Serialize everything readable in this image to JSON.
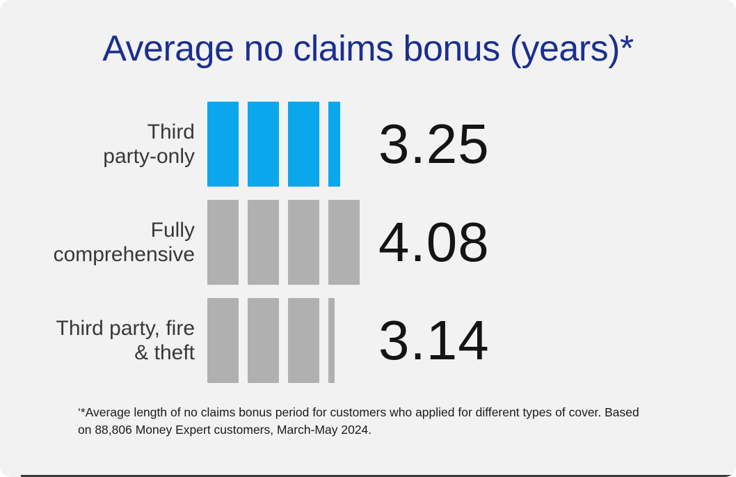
{
  "title": "Average no claims bonus (years)*",
  "footnote": "‘*Average length of no claims bonus period for customers who applied for different types of cover. Based on 88,806 Money Expert customers, March-May 2024.",
  "chart_data": {
    "type": "bar",
    "orientation": "horizontal",
    "bar_style": "segmented",
    "title": "Average no claims bonus (years)*",
    "unit": "years",
    "categories": [
      "Third party-only",
      "Fully comprehensive",
      "Third party, fire & theft"
    ],
    "category_lines": [
      [
        "Third",
        "party-only"
      ],
      [
        "Fully",
        "comprehensive"
      ],
      [
        "Third party, fire",
        "& theft"
      ]
    ],
    "values": [
      3.25,
      4.08,
      3.14
    ],
    "value_labels": [
      "3.25",
      "4.08",
      "3.14"
    ],
    "series": [
      {
        "name": "Average no claims bonus (years)",
        "values": [
          3.25,
          4.08,
          3.14
        ]
      }
    ],
    "segment_unit_years": 1,
    "xlim": [
      0,
      5
    ],
    "grid": false,
    "legend": false,
    "bar_colors": [
      "#0ba7ec",
      "#b0b0b0",
      "#b0b0b0"
    ],
    "highlight_color": "#0ba7ec",
    "default_color": "#b0b0b0"
  },
  "colors": {
    "page_background": "#ffffff",
    "card_background": "#f2f2f3",
    "title_text": "#1a2f8f",
    "label_text": "#383838",
    "value_text": "#141414",
    "footnote_text": "#1a1a1a",
    "bottom_line": "#3a3a3a"
  }
}
